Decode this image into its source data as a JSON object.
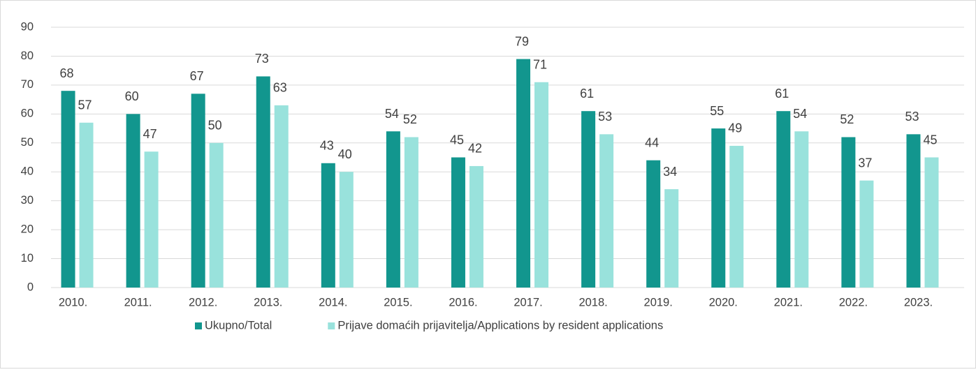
{
  "chart_data": {
    "type": "bar",
    "categories": [
      "2010.",
      "2011.",
      "2012.",
      "2013.",
      "2014.",
      "2015.",
      "2016.",
      "2017.",
      "2018.",
      "2019.",
      "2020.",
      "2021.",
      "2022.",
      "2023."
    ],
    "series": [
      {
        "name": "Ukupno/Total",
        "color": "#12968e",
        "values": [
          68,
          60,
          67,
          73,
          43,
          54,
          45,
          79,
          61,
          44,
          55,
          61,
          52,
          53
        ]
      },
      {
        "name": "Prijave domaćih prijavitelja/Applications by resident applications",
        "color": "#99e2dc",
        "values": [
          57,
          47,
          50,
          63,
          40,
          52,
          42,
          71,
          53,
          34,
          49,
          54,
          37,
          45
        ]
      }
    ],
    "ylim": [
      0,
      90
    ],
    "yticks": [
      0,
      10,
      20,
      30,
      40,
      50,
      60,
      70,
      80,
      90
    ],
    "grid": true,
    "legend": "bottom"
  }
}
